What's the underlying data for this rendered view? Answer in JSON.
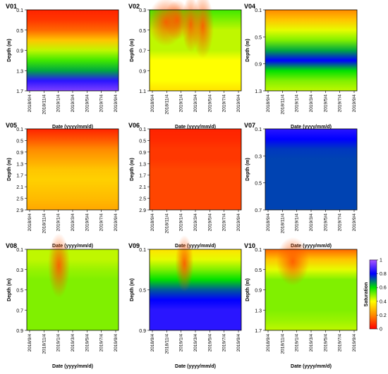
{
  "chart_data": {
    "type": "heatmap",
    "colorbar": {
      "label": "Saturation",
      "range": [
        0,
        1
      ],
      "ticks": [
        "0",
        "0.2",
        "0.4",
        "0.6",
        "0.8",
        "1"
      ],
      "colors": [
        "#ff0000",
        "#ff8a00",
        "#ffff00",
        "#00e000",
        "#0000ff",
        "#aa55ff"
      ]
    },
    "x_ticks": [
      "2018/9/4",
      "2018/11/4",
      "2019/1/4",
      "2019/3/4",
      "2019/5/4",
      "2019/7/4",
      "2019/9/4"
    ],
    "panels": [
      {
        "title": "V01",
        "xlabel": "Date (yyyy/mm/d)",
        "ylabel": "Depth (m)",
        "y_ticks": [
          "0.1",
          "0.5",
          "0.9",
          "1.3",
          "1.7"
        ],
        "profile": [
          0.05,
          0.08,
          0.15,
          0.3,
          0.45,
          0.55,
          0.65,
          0.85,
          0.95
        ],
        "events": []
      },
      {
        "title": "V02",
        "xlabel": "Date (yyyy/mm/d)",
        "ylabel": "Depth (m)",
        "y_ticks": [
          "0.3",
          "0.5",
          "0.7",
          "0.9",
          "1.1"
        ],
        "profile": [
          0.55,
          0.5,
          0.45,
          0.45,
          0.45,
          0.4,
          0.4,
          0.4,
          0.35
        ],
        "events": [
          [
            0.18,
            0.2,
            0.3
          ],
          [
            0.3,
            0.14,
            0.25
          ],
          [
            0.45,
            0.1,
            0.35
          ],
          [
            0.58,
            0.12,
            0.4
          ]
        ]
      },
      {
        "title": "V04",
        "xlabel": "Date (yyyy/mm/d)",
        "ylabel": "Depth (m)",
        "y_ticks": [
          "0.1",
          "0.5",
          "0.9",
          "1.3"
        ],
        "profile": [
          0.2,
          0.3,
          0.42,
          0.5,
          0.65,
          0.8,
          0.6,
          0.5,
          0.45
        ],
        "events": []
      },
      {
        "title": "V05",
        "xlabel": "Date (yyyy/mm/d)",
        "ylabel": "Depth (m)",
        "y_ticks": [
          "0.1",
          "0.5",
          "0.9",
          "1.3",
          "1.7",
          "2.1",
          "2.5",
          "2.9"
        ],
        "profile": [
          0.05,
          0.12,
          0.2,
          0.25,
          0.3,
          0.32,
          0.3,
          0.28,
          0.25
        ],
        "events": []
      },
      {
        "title": "V06",
        "xlabel": "Date (yyyy/mm/d)",
        "ylabel": "Depth (m)",
        "y_ticks": [
          "0.1",
          "0.5",
          "0.9",
          "1.3",
          "1.7",
          "2.1",
          "2.5",
          "2.9"
        ],
        "profile": [
          0.05,
          0.06,
          0.08,
          0.08,
          0.1,
          0.1,
          0.1,
          0.1,
          0.1
        ],
        "events": []
      },
      {
        "title": "V07",
        "xlabel": "Date (yyyy/mm/d)",
        "ylabel": "Depth (m)",
        "y_ticks": [
          "0.1",
          "0.3",
          "0.5",
          "0.7"
        ],
        "profile": [
          0.85,
          0.8,
          0.75,
          0.74,
          0.74,
          0.74,
          0.74,
          0.74,
          0.74
        ],
        "events": []
      },
      {
        "title": "V08",
        "xlabel": "Date (yyyy/mm/d)",
        "ylabel": "Depth (m)",
        "y_ticks": [
          "0.1",
          "0.3",
          "0.5",
          "0.7",
          "0.9"
        ],
        "profile": [
          0.45,
          0.45,
          0.48,
          0.5,
          0.5,
          0.5,
          0.5,
          0.5,
          0.5
        ],
        "events": [
          [
            0.35,
            0.12,
            0.4
          ]
        ]
      },
      {
        "title": "V09",
        "xlabel": "Date (yyyy/mm/d)",
        "ylabel": "Depth (m)",
        "y_ticks": [
          "0.1",
          "0.5",
          "0.9"
        ],
        "profile": [
          0.35,
          0.42,
          0.5,
          0.6,
          0.72,
          0.8,
          0.85,
          0.85,
          0.85
        ],
        "events": [
          [
            0.38,
            0.1,
            0.35
          ]
        ]
      },
      {
        "title": "V10",
        "xlabel": "Date (yyyy/mm/d)",
        "ylabel": "Depth (m)",
        "y_ticks": [
          "0.1",
          "0.5",
          "0.9",
          "1.3",
          "1.7"
        ],
        "profile": [
          0.15,
          0.3,
          0.42,
          0.5,
          0.5,
          0.5,
          0.5,
          0.48,
          0.45
        ],
        "events": [
          [
            0.3,
            0.18,
            0.3
          ]
        ]
      }
    ]
  }
}
